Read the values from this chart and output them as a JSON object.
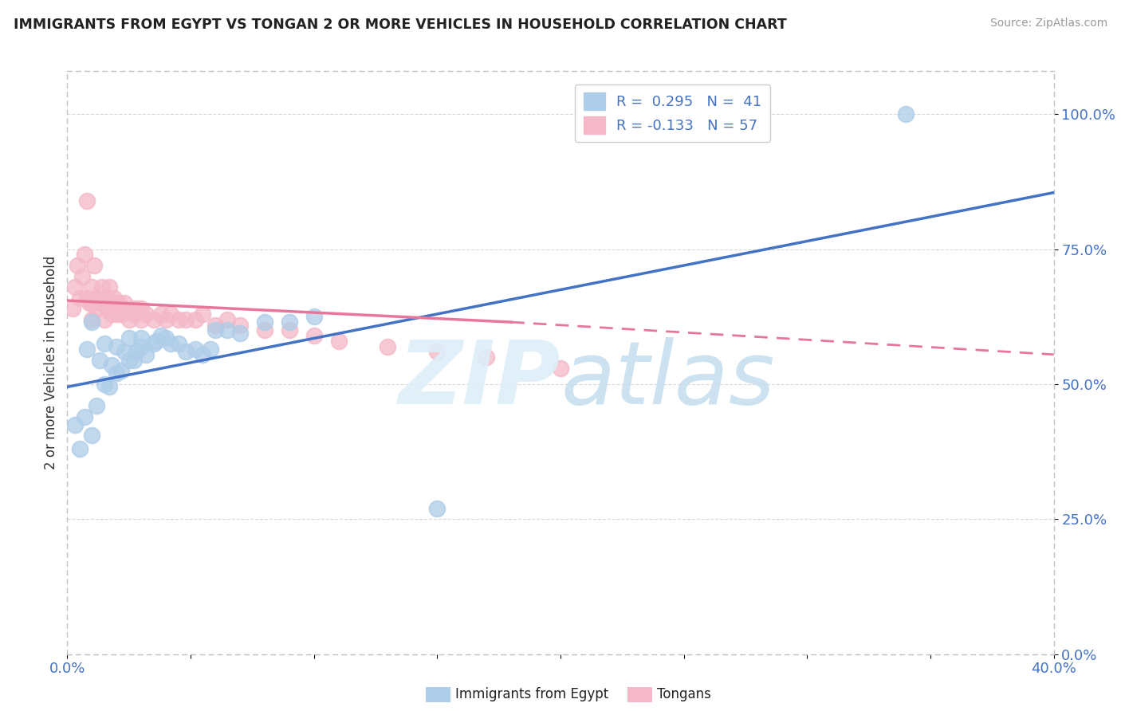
{
  "title": "IMMIGRANTS FROM EGYPT VS TONGAN 2 OR MORE VEHICLES IN HOUSEHOLD CORRELATION CHART",
  "source": "Source: ZipAtlas.com",
  "ylabel": "2 or more Vehicles in Household",
  "yticks": [
    "0.0%",
    "25.0%",
    "50.0%",
    "75.0%",
    "100.0%"
  ],
  "ytick_vals": [
    0.0,
    0.25,
    0.5,
    0.75,
    1.0
  ],
  "xlim": [
    0.0,
    0.4
  ],
  "ylim": [
    0.0,
    1.08
  ],
  "color_egypt": "#aecde8",
  "color_tonga": "#f4b8c8",
  "color_egypt_line": "#4472c4",
  "color_tonga_line": "#e8759a",
  "egypt_x": [
    0.003,
    0.005,
    0.007,
    0.008,
    0.01,
    0.01,
    0.012,
    0.013,
    0.015,
    0.015,
    0.017,
    0.018,
    0.02,
    0.02,
    0.022,
    0.023,
    0.025,
    0.025,
    0.027,
    0.028,
    0.03,
    0.03,
    0.032,
    0.035,
    0.036,
    0.038,
    0.04,
    0.042,
    0.045,
    0.048,
    0.052,
    0.055,
    0.058,
    0.06,
    0.065,
    0.07,
    0.08,
    0.09,
    0.1,
    0.15,
    0.34
  ],
  "egypt_y": [
    0.425,
    0.38,
    0.44,
    0.565,
    0.405,
    0.615,
    0.46,
    0.545,
    0.5,
    0.575,
    0.495,
    0.535,
    0.52,
    0.57,
    0.525,
    0.56,
    0.545,
    0.585,
    0.545,
    0.56,
    0.57,
    0.585,
    0.555,
    0.575,
    0.58,
    0.59,
    0.585,
    0.575,
    0.575,
    0.56,
    0.565,
    0.555,
    0.565,
    0.6,
    0.6,
    0.595,
    0.615,
    0.615,
    0.625,
    0.27,
    1.0
  ],
  "tonga_x": [
    0.002,
    0.003,
    0.004,
    0.005,
    0.006,
    0.007,
    0.008,
    0.008,
    0.009,
    0.01,
    0.01,
    0.01,
    0.011,
    0.012,
    0.012,
    0.013,
    0.014,
    0.015,
    0.015,
    0.016,
    0.016,
    0.017,
    0.018,
    0.018,
    0.019,
    0.02,
    0.02,
    0.021,
    0.022,
    0.022,
    0.023,
    0.025,
    0.026,
    0.027,
    0.028,
    0.03,
    0.03,
    0.032,
    0.035,
    0.038,
    0.04,
    0.042,
    0.045,
    0.048,
    0.052,
    0.055,
    0.06,
    0.065,
    0.07,
    0.08,
    0.09,
    0.1,
    0.11,
    0.13,
    0.15,
    0.17,
    0.2
  ],
  "tonga_y": [
    0.64,
    0.68,
    0.72,
    0.66,
    0.7,
    0.74,
    0.66,
    0.84,
    0.65,
    0.62,
    0.65,
    0.68,
    0.72,
    0.64,
    0.66,
    0.65,
    0.68,
    0.62,
    0.65,
    0.64,
    0.66,
    0.68,
    0.63,
    0.65,
    0.66,
    0.63,
    0.65,
    0.65,
    0.63,
    0.64,
    0.65,
    0.62,
    0.64,
    0.63,
    0.64,
    0.62,
    0.64,
    0.63,
    0.62,
    0.63,
    0.62,
    0.63,
    0.62,
    0.62,
    0.62,
    0.63,
    0.61,
    0.62,
    0.61,
    0.6,
    0.6,
    0.59,
    0.58,
    0.57,
    0.56,
    0.55,
    0.53
  ]
}
